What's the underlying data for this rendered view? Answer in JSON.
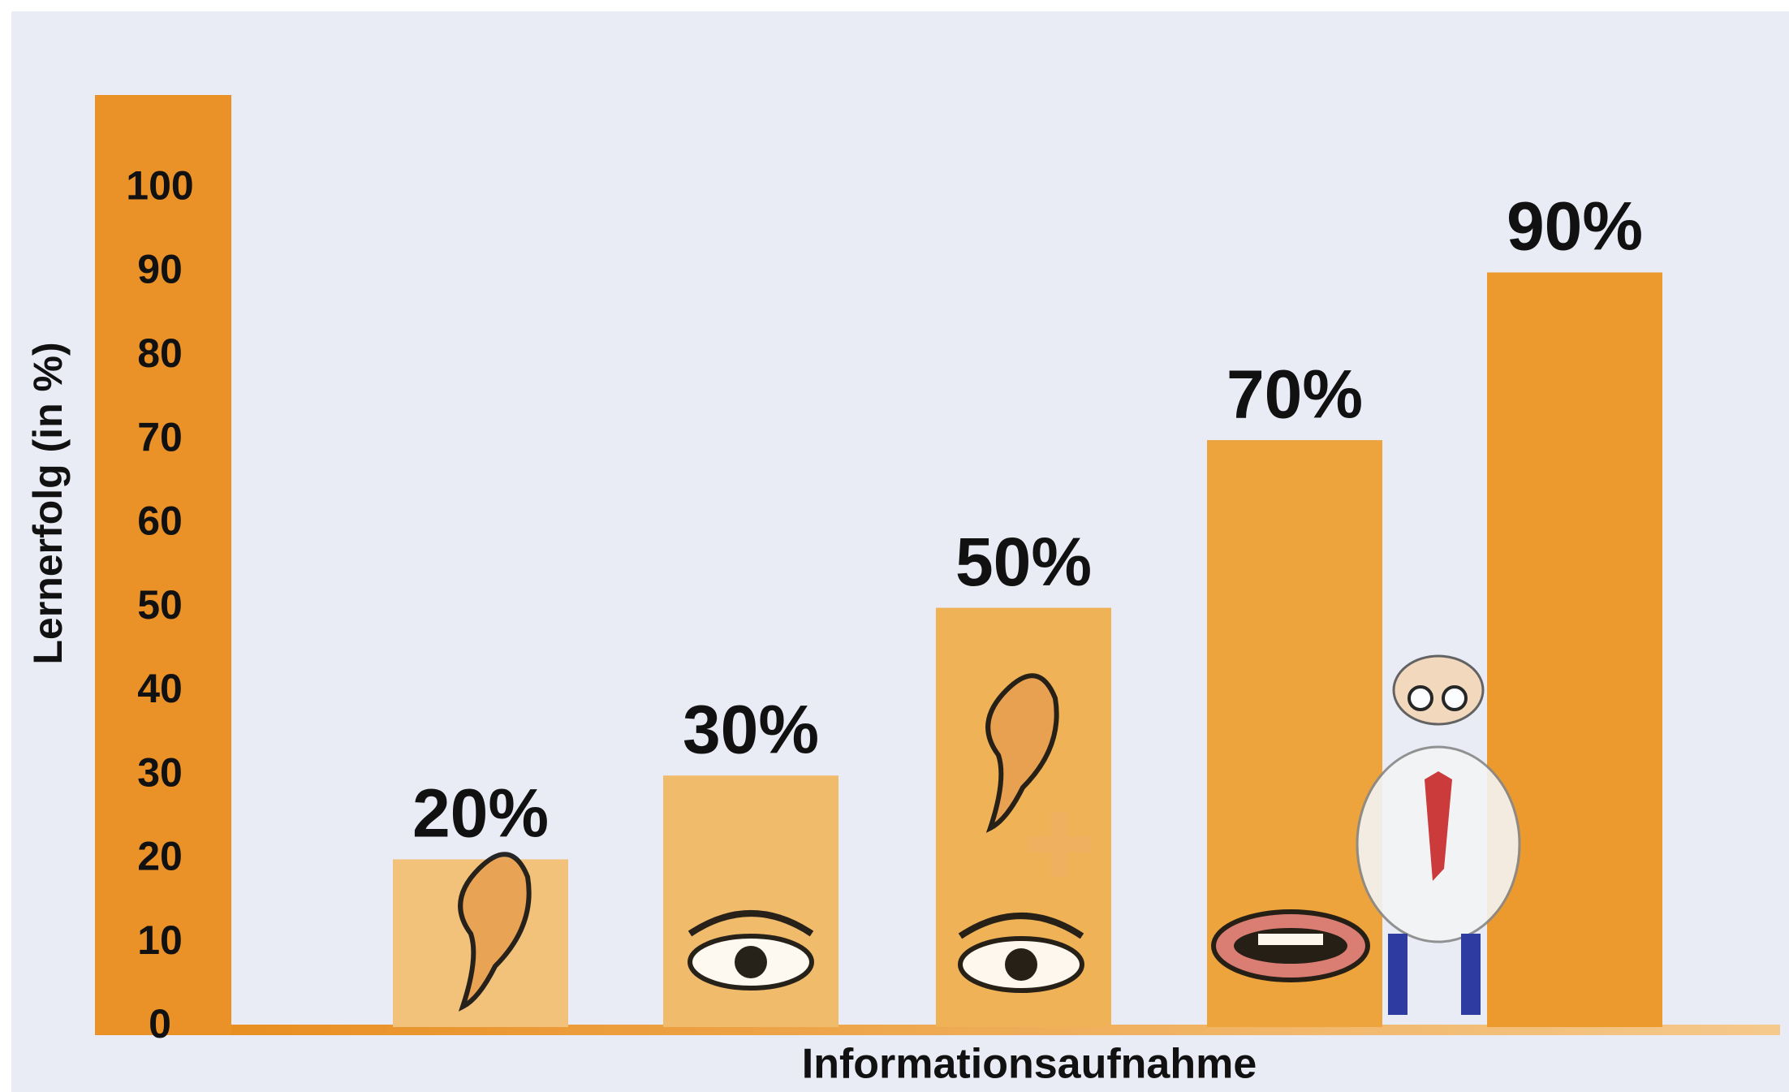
{
  "chart_data": {
    "type": "bar",
    "x_label": "Informationsaufnahme",
    "y_label": "Lernerfolg (in %)",
    "categories": [
      null,
      null,
      null,
      null,
      null
    ],
    "values": [
      20,
      30,
      50,
      70,
      90
    ],
    "value_labels": [
      "20%",
      "30%",
      "50%",
      "70%",
      "90%"
    ],
    "colors": [
      "#f2c27a",
      "#f1bb6c",
      "#efb257",
      "#eda43d",
      "#ec9a2e"
    ],
    "ylim": [
      0,
      110
    ],
    "yticks": [
      0,
      10,
      20,
      30,
      40,
      50,
      60,
      70,
      80,
      90,
      100
    ]
  }
}
